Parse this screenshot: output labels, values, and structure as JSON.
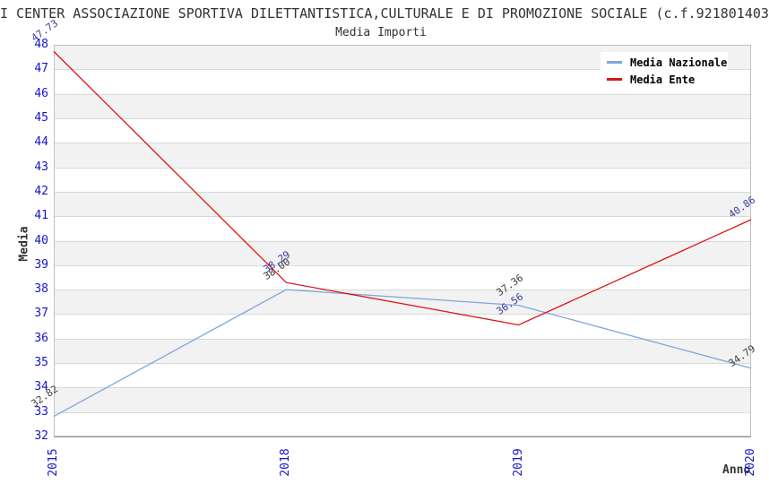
{
  "title": "I CENTER ASSOCIAZIONE SPORTIVA DILETTANTISTICA,CULTURALE E DI PROMOZIONE SOCIALE (c.f.921801403",
  "subtitle": "Media Importi",
  "chart_data": {
    "type": "line",
    "title": "Media Importi",
    "categories": [
      "2015",
      "2018",
      "2019",
      "2020"
    ],
    "series": [
      {
        "name": "Media Nazionale",
        "color": "#7ba7dc",
        "label_color": "#3c3c3c",
        "values": [
          32.82,
          38.0,
          37.36,
          34.79
        ]
      },
      {
        "name": "Media Ente",
        "color": "#dc1414",
        "label_color": "#3a3a9e",
        "values": [
          47.73,
          38.29,
          36.56,
          40.86
        ]
      }
    ],
    "xlabel": "Anno",
    "ylabel": "Media",
    "ylim": [
      32,
      48
    ],
    "ytick_step": 1,
    "grid": "horizontal",
    "band_fill": "alternating",
    "legend_position": "top-right",
    "colors": {
      "tick_label": "#1414cc",
      "band": "#f2f2f2",
      "gridline": "#d8d8d8",
      "border": "#c0c0c0",
      "bottom_axis": "#999999",
      "title_text": "#333333"
    }
  }
}
